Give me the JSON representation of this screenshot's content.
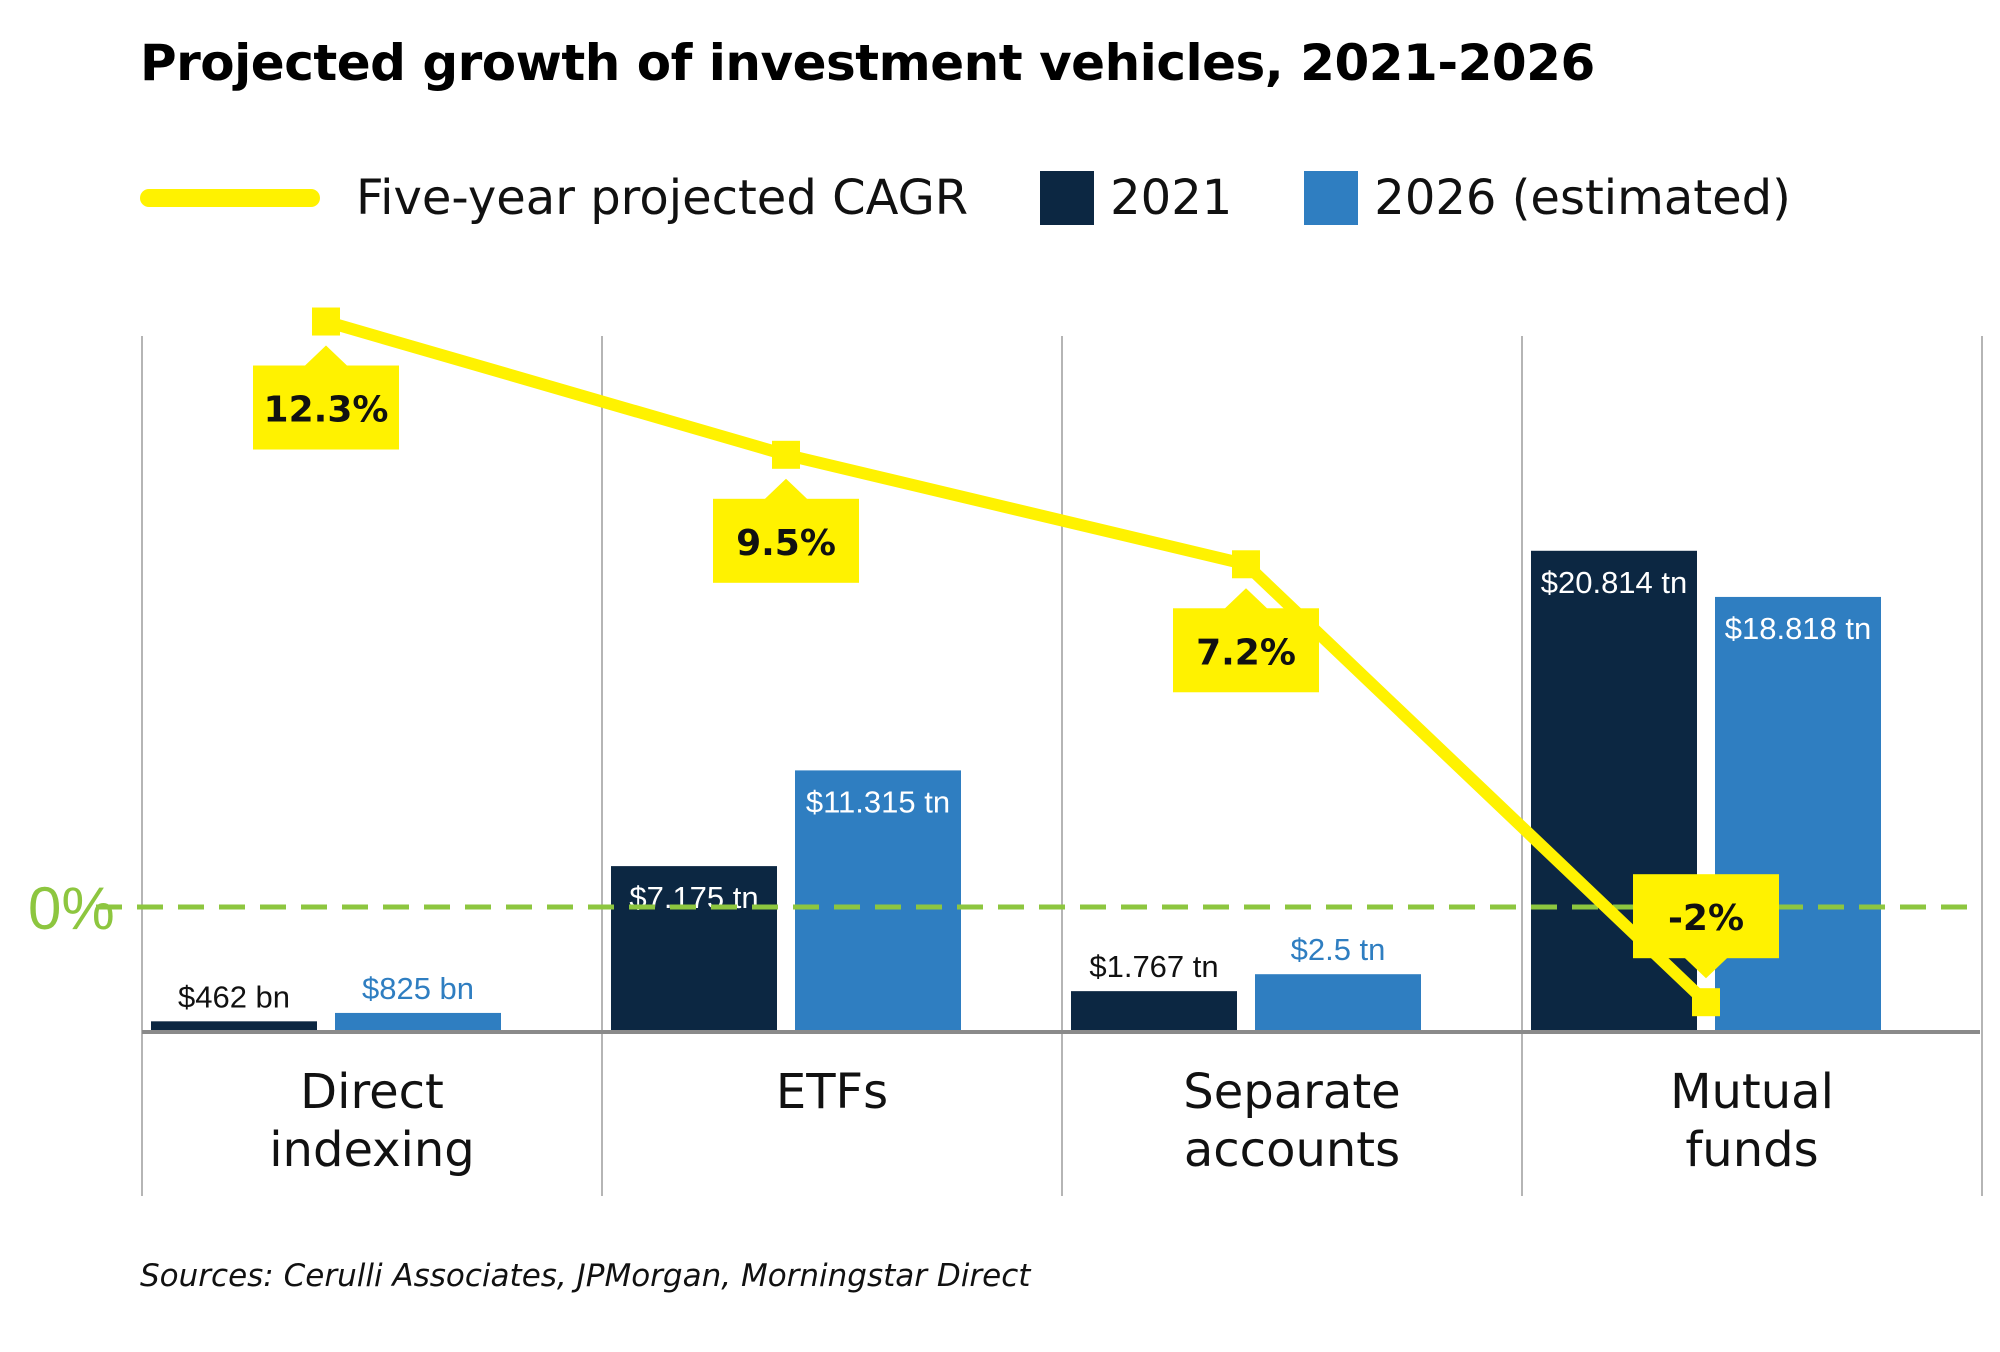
{
  "colors": {
    "series_2021": "#0c2742",
    "series_2026": "#2f7ec1",
    "cagr_line": "#fff200",
    "zero_line": "#8dc63f",
    "grid": "#b5b5b5",
    "axis": "#8a8a8a"
  },
  "legend": {
    "cagr": "Five-year projected CAGR",
    "y2021": "2021",
    "y2026": "2026 (estimated)"
  },
  "zero_label": "0%",
  "source": "Sources: Cerulli Associates, JPMorgan, Morningstar Direct",
  "chart_data": {
    "type": "bar",
    "title": "Projected growth of investment vehicles, 2021-2026",
    "categories": [
      [
        "Direct",
        "indexing"
      ],
      [
        "ETFs"
      ],
      [
        "Separate",
        "accounts"
      ],
      [
        "Mutual",
        "funds"
      ]
    ],
    "units": "tn",
    "series": [
      {
        "name": "2021",
        "values": [
          0.462,
          7.175,
          1.767,
          20.814
        ],
        "labels": [
          "$462 bn",
          "$7.175 tn",
          "$1.767 tn",
          "$20.814 tn"
        ]
      },
      {
        "name": "2026 (estimated)",
        "values": [
          0.825,
          11.315,
          2.5,
          18.818
        ],
        "labels": [
          "$825 bn",
          "$11.315 tn",
          "$2.5 tn",
          "$18.818 tn"
        ]
      }
    ],
    "line_series": {
      "name": "Five-year projected CAGR",
      "values": [
        12.3,
        9.5,
        7.2,
        -2
      ],
      "labels": [
        "12.3%",
        "9.5%",
        "7.2%",
        "-2%"
      ]
    },
    "bar_ylim": [
      0,
      25
    ],
    "line_zero": "0%",
    "grid": false,
    "legend_position": "top-left"
  }
}
